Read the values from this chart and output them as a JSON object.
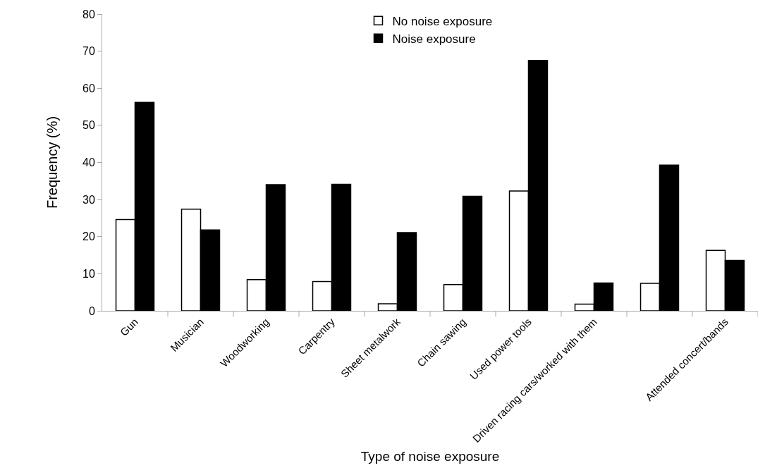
{
  "chart_data": {
    "type": "bar",
    "xlabel": "Type of noise exposure",
    "ylabel": "Frequency (%)",
    "categories": [
      "Gun",
      "Musician",
      "Woodworking",
      "Carpentry",
      "Sheet metalwork",
      "Chain sawing",
      "Used power tools",
      "Driven racing cars/worked with them",
      null,
      "Attended concert/bands"
    ],
    "series": [
      {
        "name": "No noise exposure",
        "color": "#ffffff",
        "values": [
          24.6,
          27.4,
          8.4,
          7.9,
          1.9,
          7.1,
          32.3,
          1.8,
          7.4,
          16.3
        ]
      },
      {
        "name": "Noise exposure",
        "color": "#000000",
        "values": [
          56.2,
          21.8,
          34.0,
          34.1,
          21.1,
          30.9,
          67.5,
          7.5,
          39.3,
          13.6
        ]
      }
    ],
    "ylim": [
      0,
      80
    ],
    "yticks": [
      0,
      10,
      20,
      30,
      40,
      50,
      60,
      70,
      80
    ],
    "grid": false,
    "legend": "top"
  }
}
